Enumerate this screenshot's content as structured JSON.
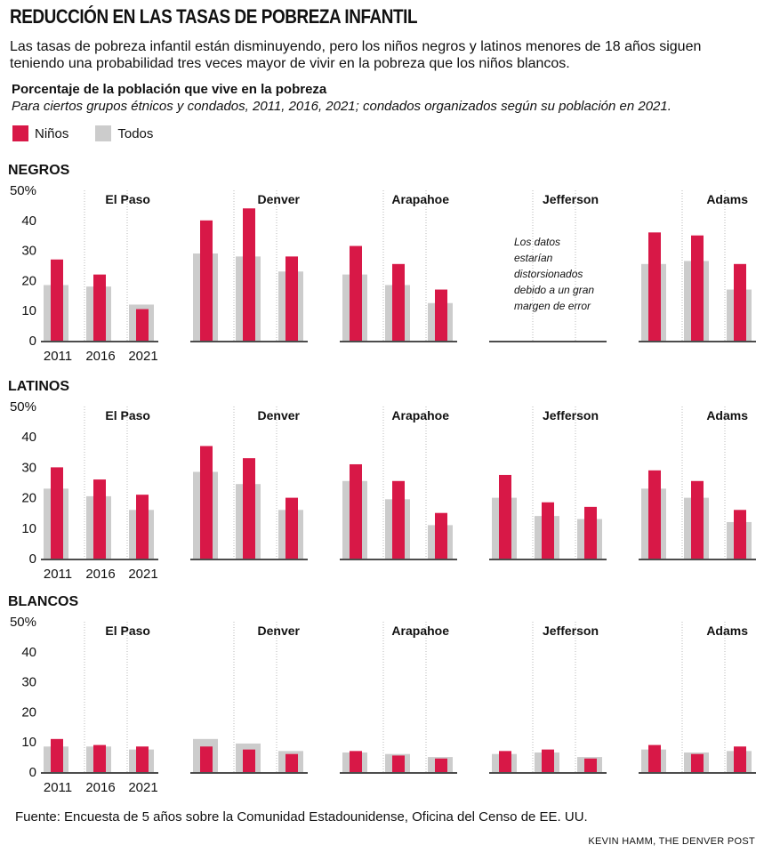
{
  "header": {
    "title": "REDUCCIÓN EN LAS TASAS DE POBREZA INFANTIL",
    "subtitle": "Las tasas de pobreza infantil están disminuyendo, pero los niños negros y latinos menores de 18 años siguen teniendo una probabilidad tres veces mayor  de vivir en la pobreza que los niños blancos.",
    "chart_title": "Porcentaje de la población que vive en la pobreza",
    "chart_note": "Para ciertos grupos étnicos y condados, 2011, 2016, 2021; condados organizados según su población en 2021."
  },
  "legend": [
    {
      "label": "Niños",
      "color": "#d81847"
    },
    {
      "label": "Todos",
      "color": "#cccccc"
    }
  ],
  "footer": {
    "source": "Fuente: Encuesta de 5 años sobre la Comunidad Estadounidense, Oficina del Censo de EE. UU.",
    "credit": "KEVIN HAMM, THE DENVER POST"
  },
  "chart_data": {
    "type": "bar",
    "categories": [
      "2011",
      "2016",
      "2021"
    ],
    "ylim": [
      0,
      50
    ],
    "yticks": [
      "0",
      "10",
      "20",
      "30",
      "40",
      "50%"
    ],
    "series_names": [
      "Niños",
      "Todos"
    ],
    "no_data_note": [
      "Los datos",
      "estarían",
      "distorsionados",
      "debido a un gran",
      "margen de error"
    ],
    "groups": [
      {
        "label": "NEGROS",
        "counties": [
          {
            "name": "El Paso",
            "ninos": [
              27,
              22,
              10.5
            ],
            "todos": [
              18.5,
              18,
              12
            ]
          },
          {
            "name": "Denver",
            "ninos": [
              40,
              44,
              28
            ],
            "todos": [
              29,
              28,
              23
            ]
          },
          {
            "name": "Arapahoe",
            "ninos": [
              31.5,
              25.5,
              17
            ],
            "todos": [
              22,
              18.5,
              12.5
            ]
          },
          {
            "name": "Jefferson",
            "ninos": null,
            "todos": null
          },
          {
            "name": "Adams",
            "ninos": [
              36,
              35,
              25.5
            ],
            "todos": [
              25.5,
              26.5,
              17
            ]
          }
        ]
      },
      {
        "label": "LATINOS",
        "counties": [
          {
            "name": "El Paso",
            "ninos": [
              30,
              26,
              21
            ],
            "todos": [
              23,
              20.5,
              16
            ]
          },
          {
            "name": "Denver",
            "ninos": [
              37,
              33,
              20
            ],
            "todos": [
              28.5,
              24.5,
              16
            ]
          },
          {
            "name": "Arapahoe",
            "ninos": [
              31,
              25.5,
              15
            ],
            "todos": [
              25.5,
              19.5,
              11
            ]
          },
          {
            "name": "Jefferson",
            "ninos": [
              27.5,
              18.5,
              17
            ],
            "todos": [
              20,
              14,
              13
            ]
          },
          {
            "name": "Adams",
            "ninos": [
              29,
              25.5,
              16
            ],
            "todos": [
              23,
              20,
              12
            ]
          }
        ]
      },
      {
        "label": "BLANCOS",
        "counties": [
          {
            "name": "El Paso",
            "ninos": [
              11,
              9,
              8.5
            ],
            "todos": [
              8.5,
              8.5,
              7.5
            ]
          },
          {
            "name": "Denver",
            "ninos": [
              8.5,
              7.5,
              6
            ],
            "todos": [
              11,
              9.5,
              7
            ]
          },
          {
            "name": "Arapahoe",
            "ninos": [
              7,
              5.5,
              4.5
            ],
            "todos": [
              6.5,
              6,
              5
            ]
          },
          {
            "name": "Jefferson",
            "ninos": [
              7,
              7.5,
              4.5
            ],
            "todos": [
              6,
              6.5,
              5
            ]
          },
          {
            "name": "Adams",
            "ninos": [
              9,
              6,
              8.5
            ],
            "todos": [
              7.5,
              6.5,
              7
            ]
          }
        ]
      }
    ]
  }
}
